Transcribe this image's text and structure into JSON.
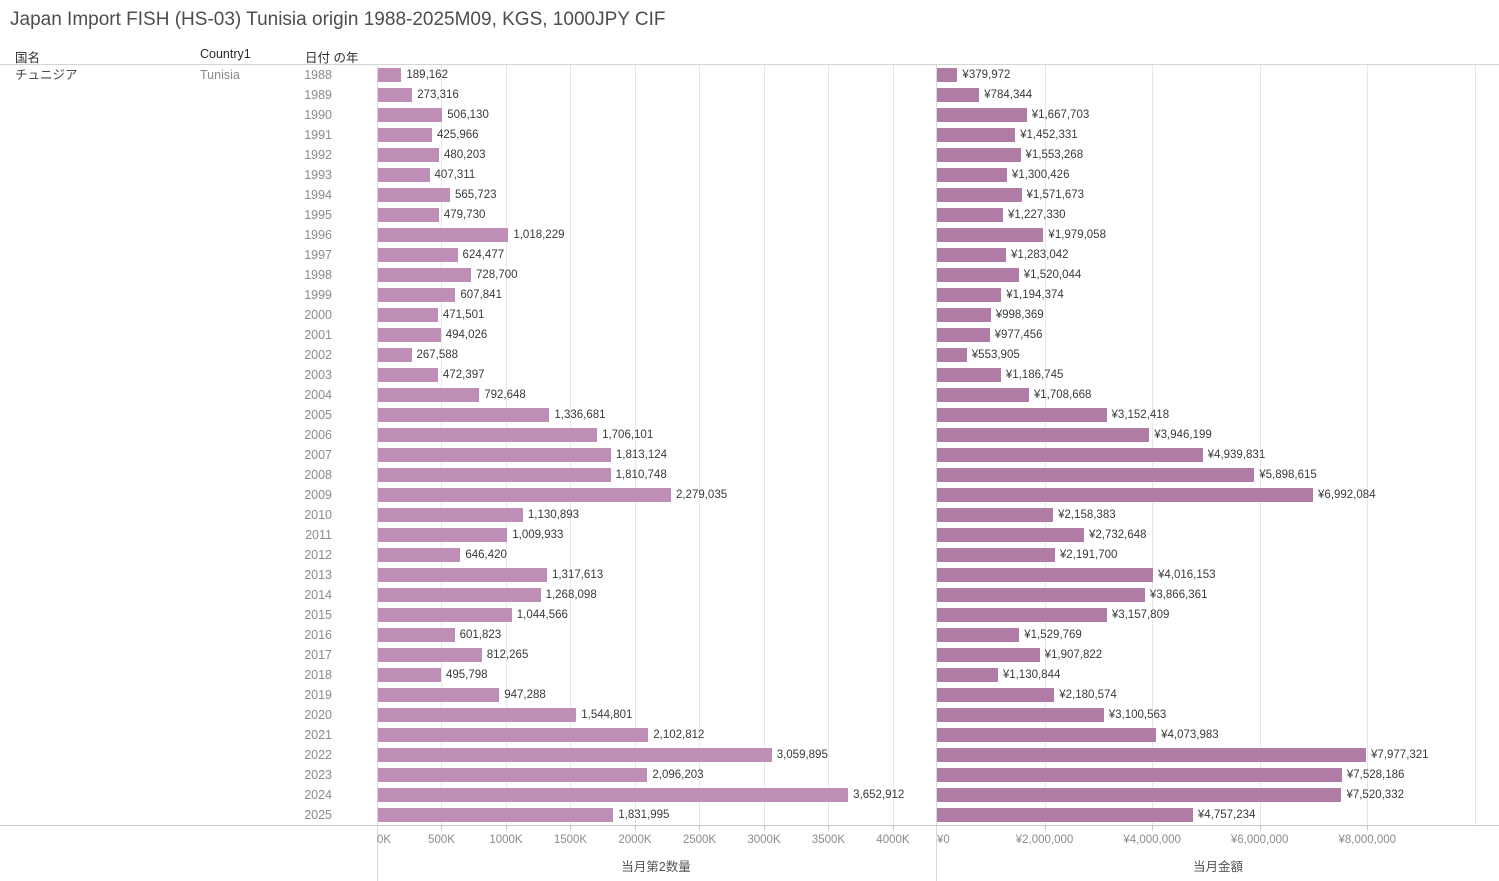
{
  "title": "Japan Import FISH (HS-03) Tunisia origin 1988-2025M09, KGS, 1000JPY CIF",
  "table": {
    "columns": [
      "国名",
      "Country1",
      "日付 の年"
    ],
    "country_jp": "チュニジア",
    "country_en": "Tunisia"
  },
  "colors": {
    "quantity_bar": "#bf8eb6",
    "amount_bar": "#b07ba4",
    "gridline": "#e9e6ea"
  },
  "chart_data": {
    "type": "bar",
    "orientation": "horizontal",
    "grid": true,
    "categories": [
      1988,
      1989,
      1990,
      1991,
      1992,
      1993,
      1994,
      1995,
      1996,
      1997,
      1998,
      1999,
      2000,
      2001,
      2002,
      2003,
      2004,
      2005,
      2006,
      2007,
      2008,
      2009,
      2010,
      2011,
      2012,
      2013,
      2014,
      2015,
      2016,
      2017,
      2018,
      2019,
      2020,
      2021,
      2022,
      2023,
      2024,
      2025
    ],
    "series": [
      {
        "name": "当月第2数量",
        "prefix": "",
        "color": "#bf8eb6",
        "axis_max": 4326000,
        "tick_interval": 500000,
        "axis_ticks": [
          "0K",
          "500K",
          "1000K",
          "1500K",
          "2000K",
          "2500K",
          "3000K",
          "3500K",
          "4000K"
        ],
        "values": [
          189162,
          273316,
          506130,
          425966,
          480203,
          407311,
          565723,
          479730,
          1018229,
          624477,
          728700,
          607841,
          471501,
          494026,
          267588,
          472397,
          792648,
          1336681,
          1706101,
          1813124,
          1810748,
          2279035,
          1130893,
          1009933,
          646420,
          1317613,
          1268098,
          1044566,
          601823,
          812265,
          495798,
          947288,
          1544801,
          2102812,
          3059895,
          2096203,
          3652912,
          1831995
        ]
      },
      {
        "name": "当月金額",
        "prefix": "¥",
        "color": "#b07ba4",
        "axis_max": 10450000,
        "tick_interval": 2000000,
        "axis_ticks": [
          "¥0",
          "¥2,000,000",
          "¥4,000,000",
          "¥6,000,000",
          "¥8,000,000"
        ],
        "values": [
          379972,
          784344,
          1667703,
          1452331,
          1553268,
          1300426,
          1571673,
          1227330,
          1979058,
          1283042,
          1520044,
          1194374,
          998369,
          977456,
          553905,
          1186745,
          1708668,
          3152418,
          3946199,
          4939831,
          5898615,
          6992084,
          2158383,
          2732648,
          2191700,
          4016153,
          3866361,
          3157809,
          1529769,
          1907822,
          1130844,
          2180574,
          3100563,
          4073983,
          7977321,
          7528186,
          7520332,
          4757234
        ]
      }
    ]
  }
}
